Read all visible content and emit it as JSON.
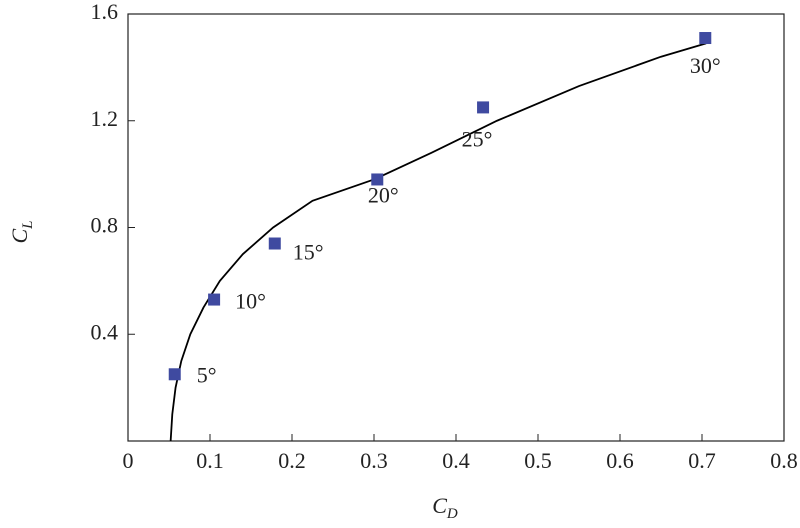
{
  "chart_data": {
    "type": "scatter",
    "xlabel": "C",
    "xlabel_sub": "D",
    "ylabel": "C",
    "ylabel_sub": "L",
    "xlim": [
      0,
      0.8
    ],
    "xticks": [
      0,
      0.1,
      0.2,
      0.3,
      0.4,
      0.5,
      0.6,
      0.7,
      0.8
    ],
    "ylim": [
      0,
      1.6
    ],
    "yticks": [
      0.4,
      0.8,
      1.2,
      1.6
    ],
    "series": [
      {
        "type": "scatter",
        "color": "#3f4aa0",
        "x": [
          0.057,
          0.105,
          0.179,
          0.304,
          0.433,
          0.704
        ],
        "values": [
          0.25,
          0.53,
          0.74,
          0.98,
          1.25,
          1.51
        ],
        "point_labels": [
          "5°",
          "10°",
          "15°",
          "20°",
          "25°",
          "30°"
        ]
      },
      {
        "type": "line",
        "color": "#000000",
        "x": [
          0.052,
          0.054,
          0.058,
          0.065,
          0.076,
          0.092,
          0.112,
          0.14,
          0.177,
          0.225,
          0.3,
          0.37,
          0.45,
          0.55,
          0.65,
          0.705
        ],
        "values": [
          0,
          0.1,
          0.2,
          0.3,
          0.4,
          0.5,
          0.6,
          0.7,
          0.8,
          0.9,
          0.98,
          1.08,
          1.2,
          1.33,
          1.44,
          1.49
        ]
      }
    ]
  }
}
